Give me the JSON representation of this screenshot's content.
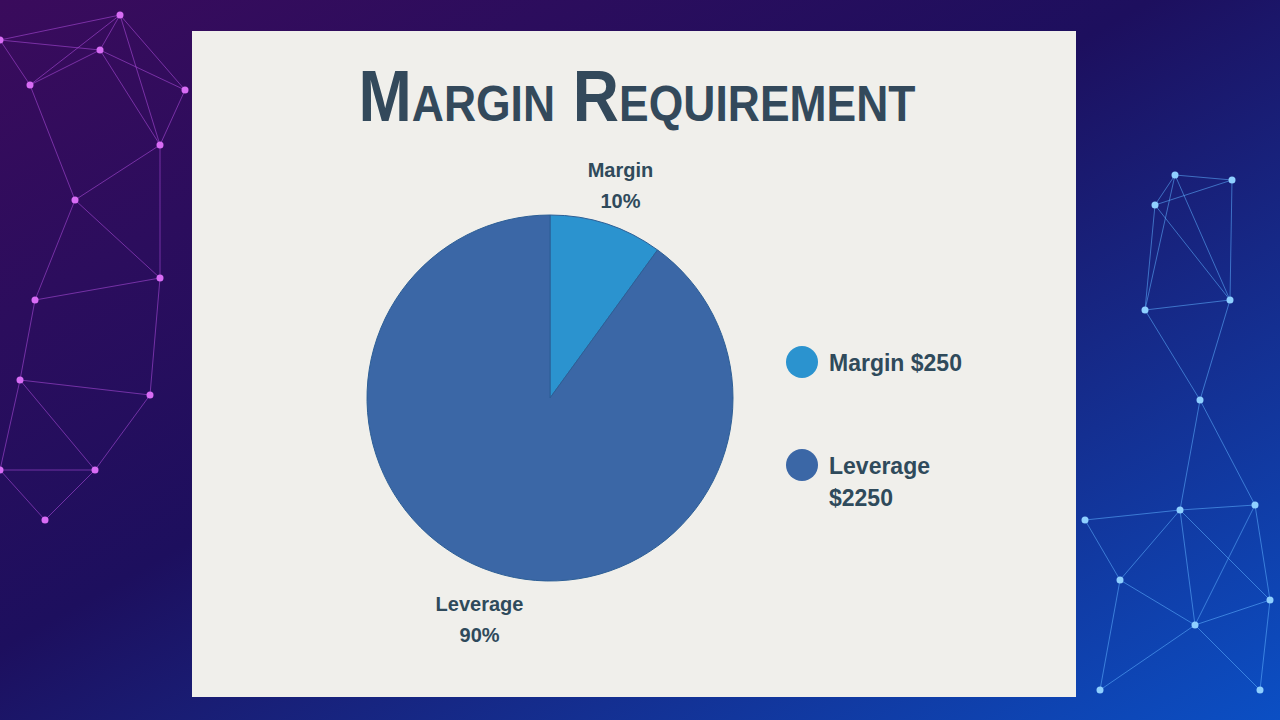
{
  "chart_data": {
    "type": "pie",
    "title": "Margin Requirement",
    "categories": [
      "Margin",
      "Leverage"
    ],
    "values": [
      10,
      90
    ],
    "value_labels": [
      "10%",
      "90%"
    ],
    "data_labels": true,
    "amounts": [
      250,
      2250
    ],
    "amount_labels": [
      "$250",
      "$2250"
    ],
    "colors": [
      "#2b93cf",
      "#3b67a6"
    ],
    "legend": "right"
  }
}
